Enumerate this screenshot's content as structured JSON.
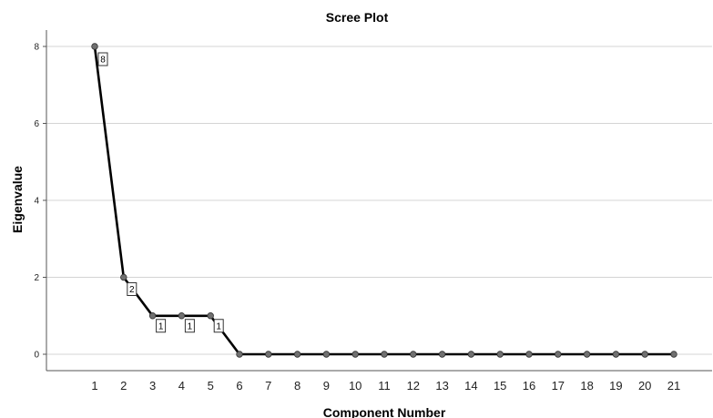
{
  "chart_data": {
    "type": "line",
    "title": "Scree Plot",
    "xlabel": "Component Number",
    "ylabel": "Eigenvalue",
    "x": [
      1,
      2,
      3,
      4,
      5,
      6,
      7,
      8,
      9,
      10,
      11,
      12,
      13,
      14,
      15,
      16,
      17,
      18,
      19,
      20,
      21
    ],
    "series": [
      {
        "values": [
          8,
          2,
          1,
          1,
          1,
          0,
          0,
          0,
          0,
          0,
          0,
          0,
          0,
          0,
          0,
          0,
          0,
          0,
          0,
          0,
          0
        ]
      }
    ],
    "data_labels": [
      {
        "x": 1,
        "text": "8"
      },
      {
        "x": 2,
        "text": "2"
      },
      {
        "x": 3,
        "text": "1"
      },
      {
        "x": 4,
        "text": "1"
      },
      {
        "x": 5,
        "text": "1"
      }
    ],
    "ylim": [
      0,
      8.4
    ],
    "yticks": [
      "0",
      "2",
      "4",
      "6",
      "8"
    ],
    "grid": true,
    "colors": {
      "line": "#000000",
      "marker": "#707070",
      "grid": "#d4d4d4"
    }
  }
}
